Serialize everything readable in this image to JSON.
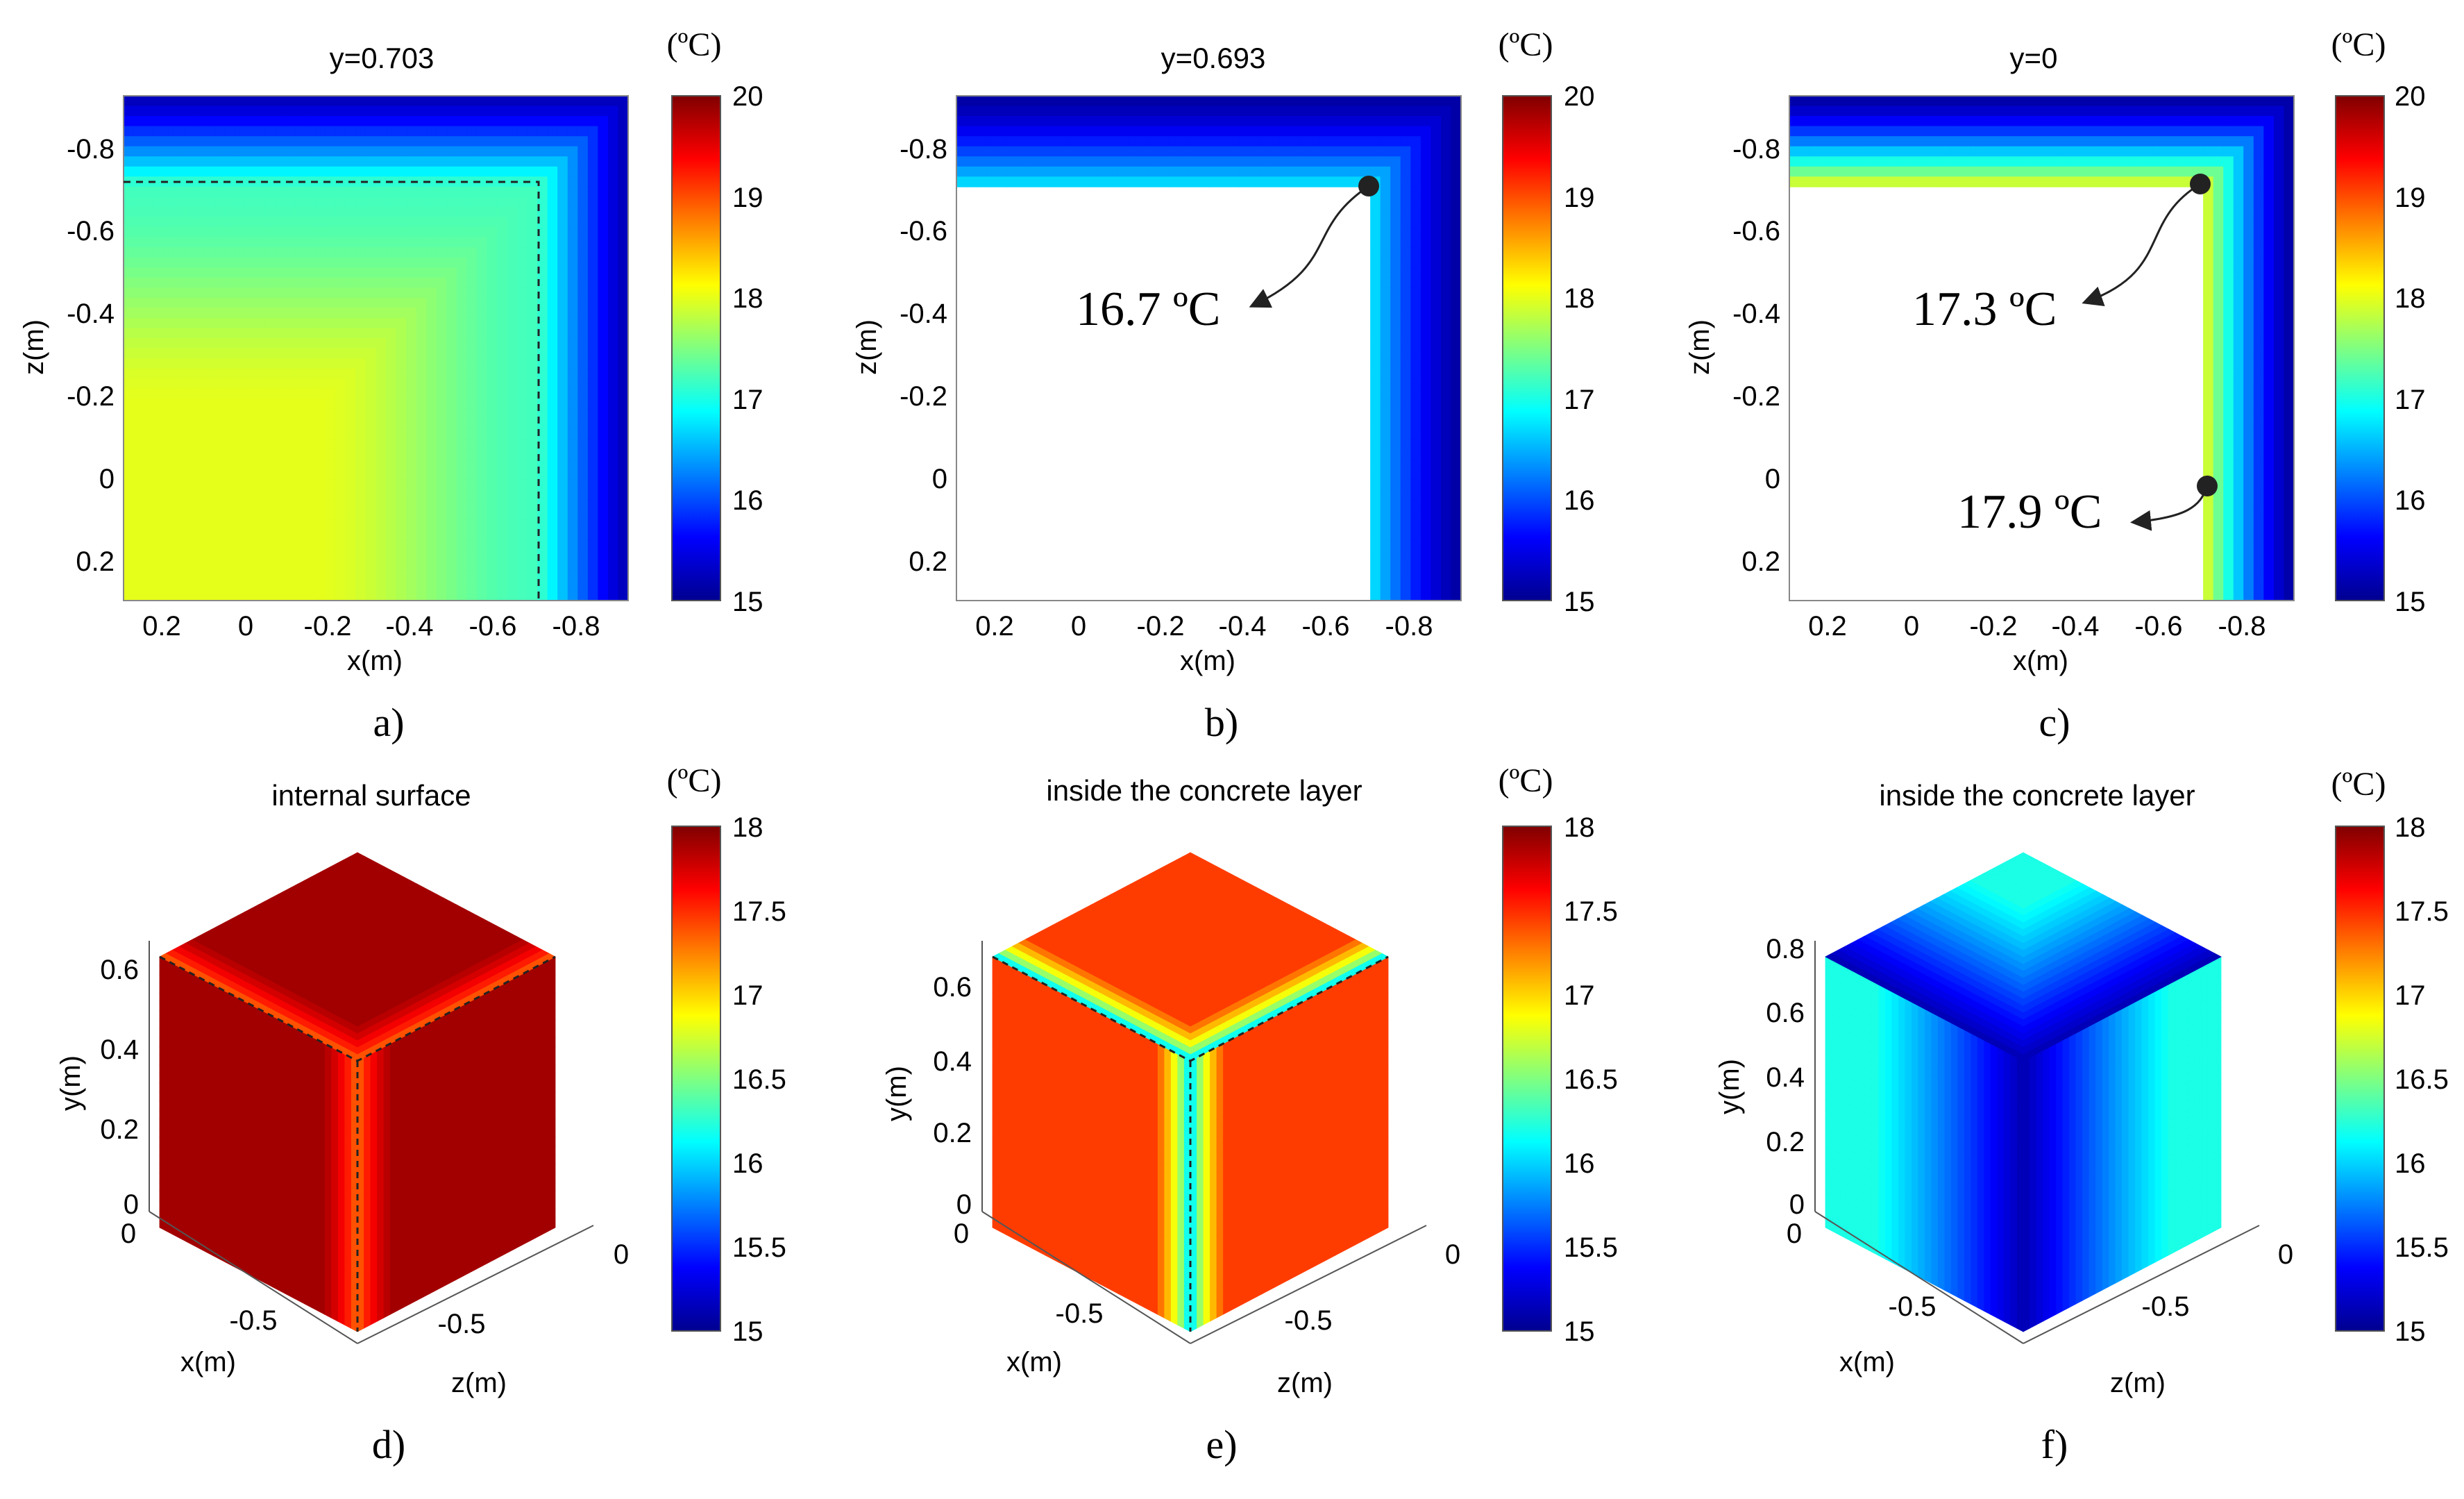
{
  "colormap": [
    "#00008f",
    "#0000ff",
    "#0080ff",
    "#00ffff",
    "#80ff80",
    "#ffff00",
    "#ff8000",
    "#ff0000",
    "#800000"
  ],
  "chart_data": [
    {
      "id": "a",
      "type": "heatmap",
      "panel_label": "a)",
      "title": "y=0.703",
      "xlabel": "x(m)",
      "ylabel": "z(m)",
      "x_ticks": [
        "0.2",
        "0",
        "-0.2",
        "-0.4",
        "-0.6",
        "-0.8"
      ],
      "y_ticks": [
        "-0.8",
        "-0.6",
        "-0.4",
        "-0.2",
        "0",
        "0.2"
      ],
      "colorbar": {
        "unit": "(ºC)",
        "ticks": [
          "20",
          "19",
          "18",
          "17",
          "16",
          "15"
        ],
        "range": [
          15,
          20
        ]
      },
      "field": {
        "interior_temp": 18.0,
        "corner_temp": 15.2
      },
      "annotations": []
    },
    {
      "id": "b",
      "type": "heatmap",
      "panel_label": "b)",
      "title": "y=0.693",
      "xlabel": "x(m)",
      "ylabel": "z(m)",
      "x_ticks": [
        "0.2",
        "0",
        "-0.2",
        "-0.4",
        "-0.6",
        "-0.8"
      ],
      "y_ticks": [
        "-0.8",
        "-0.6",
        "-0.4",
        "-0.2",
        "0",
        "0.2"
      ],
      "colorbar": {
        "unit": "(ºC)",
        "ticks": [
          "20",
          "19",
          "18",
          "17",
          "16",
          "15"
        ],
        "range": [
          15,
          20
        ]
      },
      "field": {
        "inner_edge_temp": 16.7,
        "outer_temp": 15.1
      },
      "annotations": [
        {
          "text": "16.7 ºC",
          "value": 16.7
        }
      ]
    },
    {
      "id": "c",
      "type": "heatmap",
      "panel_label": "c)",
      "title": "y=0",
      "xlabel": "x(m)",
      "ylabel": "z(m)",
      "x_ticks": [
        "0.2",
        "0",
        "-0.2",
        "-0.4",
        "-0.6",
        "-0.8"
      ],
      "y_ticks": [
        "-0.8",
        "-0.6",
        "-0.4",
        "-0.2",
        "0",
        "0.2"
      ],
      "colorbar": {
        "unit": "(ºC)",
        "ticks": [
          "20",
          "19",
          "18",
          "17",
          "16",
          "15"
        ],
        "range": [
          15,
          20
        ]
      },
      "field": {
        "inner_edge_temp": 17.9,
        "outer_temp": 15.1
      },
      "annotations": [
        {
          "text": "17.3 ºC",
          "value": 17.3
        },
        {
          "text": "17.9 ºC",
          "value": 17.9
        }
      ]
    },
    {
      "id": "d",
      "type": "heatmap",
      "panel_label": "d)",
      "title": "internal surface",
      "xlabel": "x(m)",
      "ylabel": "y(m)",
      "zlabel": "z(m)",
      "y_ticks": [
        "0.6",
        "0.4",
        "0.2",
        "0"
      ],
      "x_ticks": [
        "0",
        "-0.5"
      ],
      "z_ticks": [
        "0",
        "-0.5"
      ],
      "colorbar": {
        "unit": "(ºC)",
        "ticks": [
          "18",
          "17.5",
          "17",
          "16.5",
          "16",
          "15.5",
          "15"
        ],
        "range": [
          15,
          18
        ]
      },
      "field": {
        "face_temp": 17.9,
        "corner_temp": 17.2
      },
      "annotations": []
    },
    {
      "id": "e",
      "type": "heatmap",
      "panel_label": "e)",
      "title": "inside the concrete layer",
      "xlabel": "x(m)",
      "ylabel": "y(m)",
      "zlabel": "z(m)",
      "y_ticks": [
        "0.6",
        "0.4",
        "0.2",
        "0"
      ],
      "x_ticks": [
        "0",
        "-0.5"
      ],
      "z_ticks": [
        "0",
        "-0.5"
      ],
      "colorbar": {
        "unit": "(ºC)",
        "ticks": [
          "18",
          "17.5",
          "17",
          "16.5",
          "16",
          "15.5",
          "15"
        ],
        "range": [
          15,
          18
        ]
      },
      "field": {
        "face_temp": 17.45,
        "corner_temp": 15.7
      },
      "annotations": []
    },
    {
      "id": "f",
      "type": "heatmap",
      "panel_label": "f)",
      "title": "inside the concrete layer",
      "xlabel": "x(m)",
      "ylabel": "y(m)",
      "zlabel": "z(m)",
      "y_ticks": [
        "0.8",
        "0.6",
        "0.4",
        "0.2",
        "0"
      ],
      "x_ticks": [
        "0",
        "-0.5"
      ],
      "z_ticks": [
        "0",
        "-0.5"
      ],
      "colorbar": {
        "unit": "(ºC)",
        "ticks": [
          "18",
          "17.5",
          "17",
          "16.5",
          "16",
          "15.5",
          "15"
        ],
        "range": [
          15,
          18
        ]
      },
      "field": {
        "face_temp": 16.2,
        "corner_temp": 15.1
      },
      "annotations": []
    }
  ]
}
